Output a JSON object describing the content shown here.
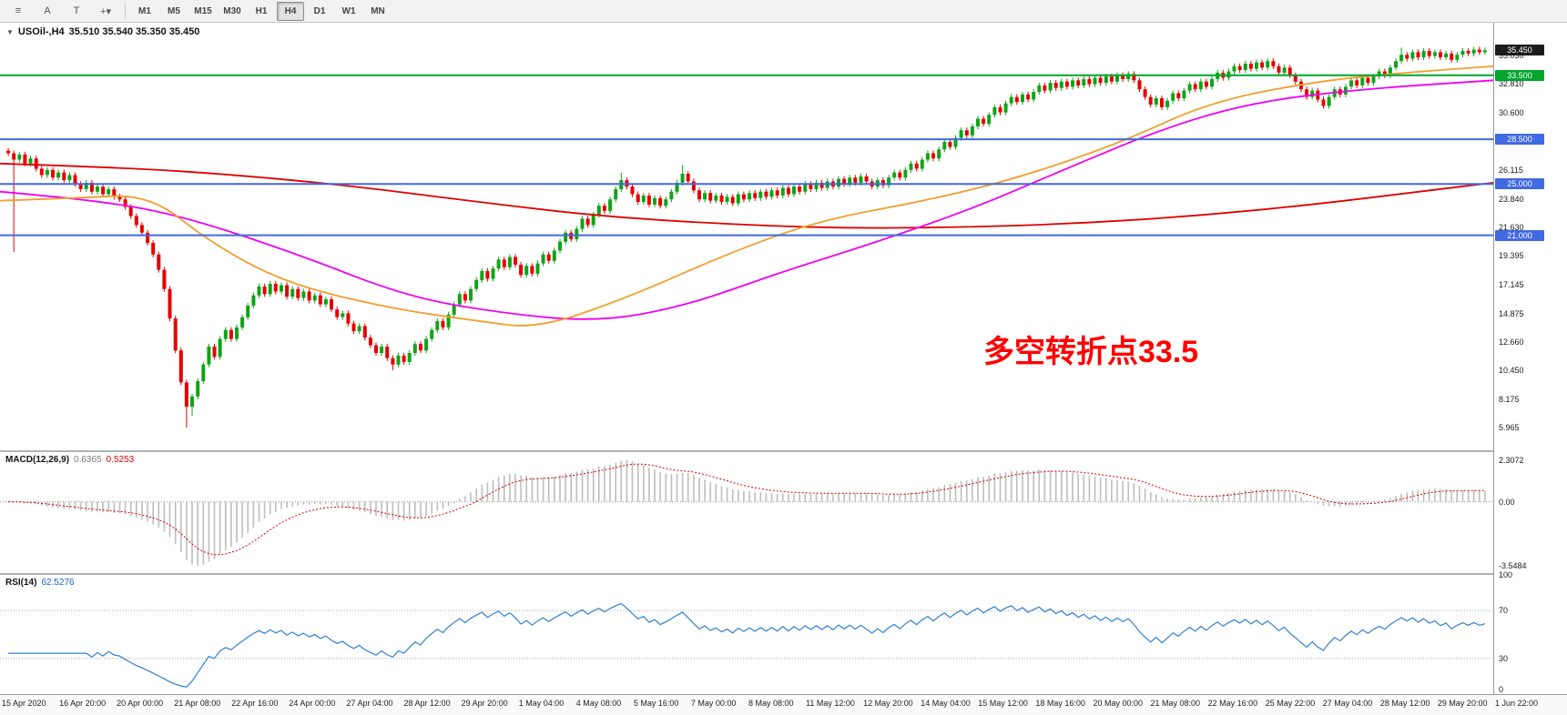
{
  "toolbar": {
    "left_icons": [
      {
        "name": "chart-list-icon",
        "glyph": "≡"
      },
      {
        "name": "cursor-tool-icon",
        "glyph": "A"
      },
      {
        "name": "text-tool-icon",
        "glyph": "T"
      },
      {
        "name": "crosshair-tool-icon",
        "glyph": "+▾"
      }
    ],
    "timeframes": [
      "M1",
      "M5",
      "M15",
      "M30",
      "H1",
      "H4",
      "D1",
      "W1",
      "MN"
    ],
    "active_timeframe": "H4"
  },
  "chart": {
    "dropdown_glyph": "▼",
    "title_symbol": "USOil-,H4",
    "title_ohlc": "35.510 35.540 35.350 35.450",
    "current_price": "35.450",
    "current_price_tag_color": "#1c1c1c",
    "annotation": "多空转折点33.5",
    "annotation_color": "#ff0000",
    "price_axis": {
      "min": 4.2,
      "max": 37.6,
      "ticks": [
        35.03,
        32.81,
        30.6,
        28.39,
        26.115,
        23.84,
        21.63,
        19.395,
        17.145,
        14.875,
        12.66,
        10.45,
        8.175,
        5.965
      ]
    },
    "hlines": [
      {
        "value": 33.5,
        "label": "33.500",
        "color": "#00a62c"
      },
      {
        "value": 28.5,
        "label": "28.500",
        "color": "#4169e1"
      },
      {
        "value": 25.0,
        "label": "25.000",
        "color": "#4169e1"
      },
      {
        "value": 21.0,
        "label": "21.000",
        "color": "#4169e1"
      }
    ]
  },
  "macd": {
    "label": "MACD(12,26,9)",
    "value_main": "0.6365",
    "value_signal": "0.5253",
    "ticks": [
      "2.3072",
      "0.00",
      "-3.5484"
    ],
    "range": {
      "min": -3.95,
      "max": 2.75
    },
    "histogram_color": "#bdbdbd",
    "signal_color": "#d40000"
  },
  "rsi": {
    "label": "RSI(14)",
    "value": "62.5276",
    "ticks": [
      "100",
      "70",
      "30",
      "0"
    ],
    "levels": [
      70,
      30
    ],
    "line_color": "#2f80d0"
  },
  "chart_data": {
    "type": "candlestick",
    "symbol": "USOil-",
    "timeframe": "H4",
    "up_color": "#10a317",
    "down_color": "#e60000",
    "open_first": 27.6,
    "closes": [
      27.4,
      26.9,
      27.3,
      26.6,
      27.0,
      26.2,
      25.7,
      26.1,
      25.5,
      25.9,
      25.3,
      25.7,
      25.0,
      24.6,
      25.1,
      24.4,
      24.8,
      24.2,
      24.6,
      24.0,
      23.8,
      23.2,
      22.5,
      21.8,
      21.2,
      20.4,
      19.5,
      18.3,
      16.8,
      14.5,
      12.0,
      9.5,
      7.6,
      8.4,
      9.6,
      10.9,
      12.3,
      11.5,
      12.9,
      13.6,
      12.9,
      13.8,
      14.6,
      15.5,
      16.3,
      17.0,
      16.4,
      17.2,
      16.6,
      17.1,
      16.2,
      16.8,
      16.1,
      16.6,
      15.9,
      16.3,
      15.6,
      16.0,
      15.2,
      14.6,
      14.9,
      14.1,
      13.5,
      13.9,
      13.0,
      12.4,
      11.8,
      12.3,
      11.4,
      10.9,
      11.6,
      11.1,
      11.8,
      12.5,
      12.0,
      12.9,
      13.6,
      14.3,
      13.8,
      14.8,
      15.6,
      16.4,
      15.9,
      16.8,
      17.5,
      18.2,
      17.6,
      18.4,
      19.1,
      18.5,
      19.3,
      18.7,
      17.9,
      18.6,
      18.0,
      18.8,
      19.5,
      19.0,
      19.8,
      20.5,
      21.2,
      20.7,
      21.5,
      22.3,
      21.8,
      22.6,
      23.3,
      22.9,
      23.8,
      24.6,
      25.3,
      24.8,
      24.2,
      23.6,
      24.1,
      23.4,
      23.9,
      23.3,
      23.8,
      24.4,
      25.1,
      25.8,
      25.2,
      24.5,
      23.8,
      24.3,
      23.7,
      24.1,
      23.6,
      24.0,
      23.5,
      24.2,
      23.8,
      24.3,
      23.9,
      24.4,
      24.0,
      24.5,
      24.1,
      24.7,
      24.2,
      24.8,
      24.4,
      25.0,
      24.6,
      25.1,
      24.7,
      25.2,
      24.8,
      25.4,
      25.0,
      25.5,
      25.1,
      25.6,
      25.2,
      24.8,
      25.3,
      24.9,
      25.5,
      25.9,
      25.5,
      26.1,
      26.6,
      26.2,
      26.9,
      27.4,
      27.0,
      27.7,
      28.3,
      27.9,
      28.6,
      29.2,
      28.8,
      29.5,
      30.1,
      29.7,
      30.4,
      31.0,
      30.6,
      31.3,
      31.8,
      31.4,
      32.0,
      31.6,
      32.2,
      32.7,
      32.3,
      32.9,
      32.5,
      33.0,
      32.6,
      33.1,
      32.7,
      33.2,
      32.8,
      33.3,
      32.9,
      33.4,
      33.0,
      33.5,
      33.2,
      33.6,
      33.1,
      32.4,
      31.8,
      31.2,
      31.7,
      31.0,
      31.5,
      32.1,
      31.7,
      32.3,
      32.8,
      32.4,
      33.0,
      32.6,
      33.2,
      33.7,
      33.3,
      33.8,
      34.2,
      33.9,
      34.4,
      34.0,
      34.5,
      34.1,
      34.6,
      34.2,
      33.7,
      34.1,
      33.5,
      33.0,
      32.4,
      31.8,
      32.3,
      31.6,
      31.1,
      31.8,
      32.4,
      32.0,
      32.6,
      33.1,
      32.7,
      33.3,
      32.9,
      33.4,
      33.8,
      33.5,
      34.1,
      34.6,
      35.1,
      34.8,
      35.3,
      34.9,
      35.4,
      35.0,
      35.3,
      34.9,
      35.2,
      34.7,
      35.1,
      35.4,
      35.2,
      35.5,
      35.3,
      35.45
    ],
    "wick_overrides": [
      {
        "i": 1,
        "low": 19.7
      },
      {
        "i": 32,
        "low": 5.97
      },
      {
        "i": 33,
        "low": 6.9
      },
      {
        "i": 69,
        "low": 10.45
      },
      {
        "i": 110,
        "high": 25.9
      },
      {
        "i": 121,
        "high": 26.5
      },
      {
        "i": 250,
        "high": 35.65
      },
      {
        "i": 263,
        "high": 35.72
      }
    ],
    "ma_lines": [
      {
        "name": "ma-slow-red",
        "color": "#e00000",
        "points": [
          [
            0,
            26.6
          ],
          [
            0.08,
            26.3
          ],
          [
            0.16,
            25.7
          ],
          [
            0.24,
            24.8
          ],
          [
            0.32,
            23.6
          ],
          [
            0.4,
            22.5
          ],
          [
            0.48,
            21.9
          ],
          [
            0.56,
            21.55
          ],
          [
            0.64,
            21.6
          ],
          [
            0.72,
            21.9
          ],
          [
            0.8,
            22.5
          ],
          [
            0.88,
            23.4
          ],
          [
            0.95,
            24.4
          ],
          [
            1,
            25.1
          ]
        ]
      },
      {
        "name": "ma-mid-magenta",
        "color": "#f000f0",
        "points": [
          [
            0,
            24.4
          ],
          [
            0.06,
            23.8
          ],
          [
            0.12,
            22.6
          ],
          [
            0.2,
            19.5
          ],
          [
            0.27,
            16.3
          ],
          [
            0.33,
            15.0
          ],
          [
            0.4,
            14.2
          ],
          [
            0.46,
            15.5
          ],
          [
            0.52,
            18.0
          ],
          [
            0.58,
            20.2
          ],
          [
            0.65,
            23.0
          ],
          [
            0.71,
            26.0
          ],
          [
            0.78,
            29.4
          ],
          [
            0.84,
            31.4
          ],
          [
            0.91,
            32.4
          ],
          [
            1,
            33.1
          ]
        ]
      },
      {
        "name": "ma-fast-orange",
        "color": "#efA030",
        "points": [
          [
            0,
            23.7
          ],
          [
            0.05,
            23.9
          ],
          [
            0.1,
            24.2
          ],
          [
            0.14,
            20.5
          ],
          [
            0.19,
            17.3
          ],
          [
            0.26,
            15.3
          ],
          [
            0.32,
            14.3
          ],
          [
            0.36,
            13.7
          ],
          [
            0.42,
            16.1
          ],
          [
            0.49,
            19.7
          ],
          [
            0.55,
            22.2
          ],
          [
            0.62,
            23.7
          ],
          [
            0.68,
            25.4
          ],
          [
            0.75,
            28.2
          ],
          [
            0.81,
            31.4
          ],
          [
            0.88,
            33.0
          ],
          [
            0.94,
            33.7
          ],
          [
            1,
            34.2
          ]
        ]
      }
    ],
    "x_labels": [
      "15 Apr 2020",
      "16 Apr 20:00",
      "20 Apr 00:00",
      "21 Apr 08:00",
      "22 Apr 16:00",
      "24 Apr 00:00",
      "27 Apr 04:00",
      "28 Apr 12:00",
      "29 Apr 20:00",
      "1 May 04:00",
      "4 May 08:00",
      "5 May 16:00",
      "7 May 00:00",
      "8 May 08:00",
      "11 May 12:00",
      "12 May 20:00",
      "14 May 04:00",
      "15 May 12:00",
      "18 May 16:00",
      "20 May 00:00",
      "21 May 08:00",
      "22 May 16:00",
      "25 May 22:00",
      "27 May 04:00",
      "28 May 12:00",
      "29 May 20:00",
      "1 Jun 22:00"
    ]
  }
}
